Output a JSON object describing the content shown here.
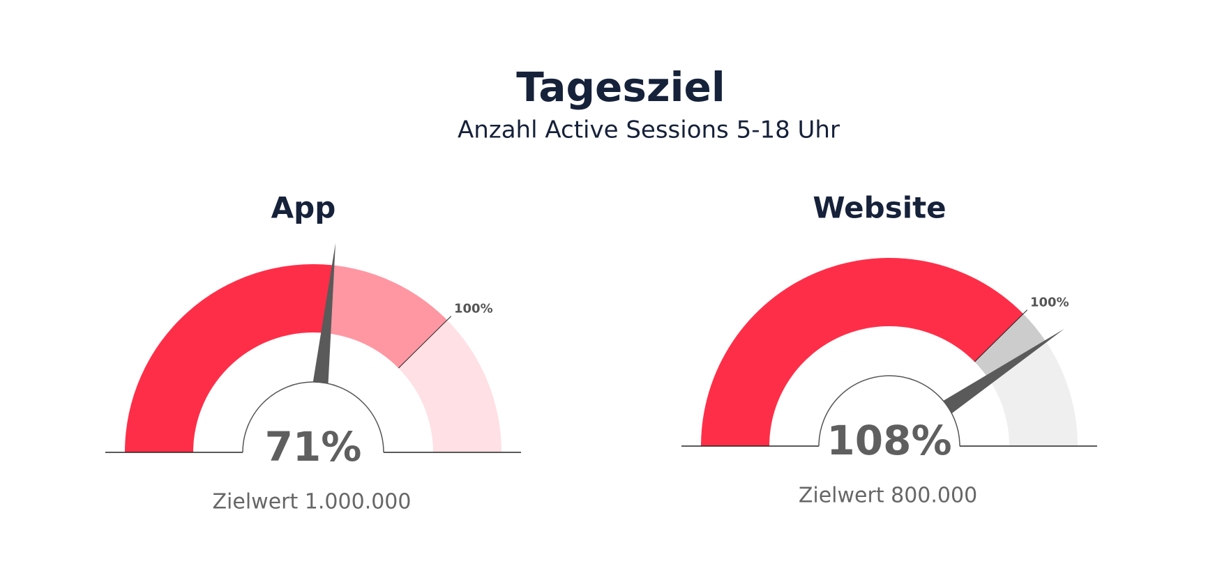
{
  "title": "Tagesziel",
  "subtitle": "Anzahl Active Sessions 5-18 Uhr",
  "chart_data": [
    {
      "type": "gauge",
      "title": "App",
      "values": [
        71
      ],
      "value_labels": [
        "71%"
      ],
      "lim": [
        0,
        133
      ],
      "ticks": [
        {
          "value": 100,
          "label": "100%"
        }
      ],
      "note": "Zielwert 1.000.000",
      "colors": [
        "#ff2e48",
        "#ff97a3",
        "#ffe0e4"
      ]
    },
    {
      "type": "gauge",
      "title": "Website",
      "values": [
        108
      ],
      "value_labels": [
        "108%"
      ],
      "lim": [
        0,
        133
      ],
      "ticks": [
        {
          "value": 100,
          "label": "100%"
        }
      ],
      "note": "Zielwert 800.000",
      "colors": [
        "#ff2e48",
        "#cccccc",
        "#efefef"
      ]
    }
  ]
}
